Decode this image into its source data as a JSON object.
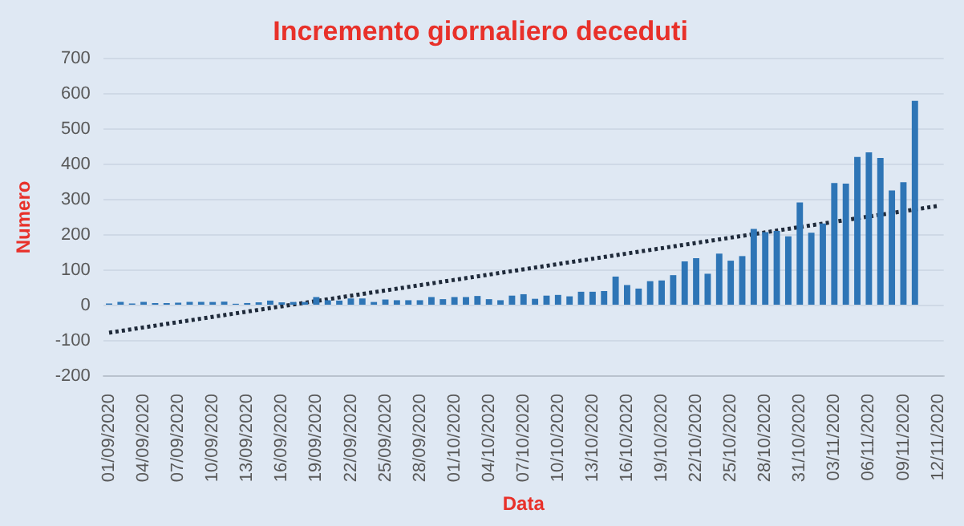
{
  "chart_data": {
    "type": "bar",
    "title": "Incremento giornaliero deceduti",
    "xlabel": "Data",
    "ylabel": "Numero",
    "categories": [
      "01/09/2020",
      null,
      null,
      "04/09/2020",
      null,
      null,
      "07/09/2020",
      null,
      null,
      "10/09/2020",
      null,
      null,
      "13/09/2020",
      null,
      null,
      "16/09/2020",
      null,
      null,
      "19/09/2020",
      null,
      null,
      "22/09/2020",
      null,
      null,
      "25/09/2020",
      null,
      null,
      "28/09/2020",
      null,
      null,
      "01/10/2020",
      null,
      null,
      "04/10/2020",
      null,
      null,
      "07/10/2020",
      null,
      null,
      "10/10/2020",
      null,
      null,
      "13/10/2020",
      null,
      null,
      "16/10/2020",
      null,
      null,
      "19/10/2020",
      null,
      null,
      "22/10/2020",
      null,
      null,
      "25/10/2020",
      null,
      null,
      "28/10/2020",
      null,
      null,
      "31/10/2020",
      null,
      null,
      "03/11/2020",
      null,
      null,
      "06/11/2020",
      null,
      null,
      "09/11/2020",
      null,
      null,
      "12/11/2020"
    ],
    "series": [
      {
        "color": "#2e75b6",
        "values": [
          6,
          10,
          6,
          10,
          7,
          7,
          8,
          10,
          10,
          10,
          11,
          5,
          7,
          9,
          14,
          9,
          10,
          10,
          24,
          15,
          14,
          20,
          20,
          10,
          17,
          15,
          15,
          15,
          24,
          18,
          24,
          24,
          27,
          18,
          15,
          28,
          32,
          19,
          28,
          30,
          26,
          39,
          39,
          41,
          82,
          58,
          48,
          69,
          71,
          86,
          125,
          134,
          90,
          147,
          127,
          140,
          217,
          208,
          211,
          196,
          292,
          206,
          232,
          347,
          345,
          421,
          434,
          418,
          326,
          349,
          580,
          null,
          null
        ]
      },
      {
        "type": "line",
        "color": "#1f2a3a",
        "line_style": "dotted",
        "marker": "none",
        "values": [
          -77,
          null,
          null,
          null,
          null,
          null,
          null,
          null,
          null,
          null,
          null,
          null,
          null,
          null,
          null,
          null,
          null,
          null,
          null,
          null,
          null,
          null,
          null,
          null,
          null,
          null,
          null,
          null,
          null,
          null,
          null,
          null,
          null,
          null,
          null,
          null,
          null,
          null,
          null,
          null,
          null,
          null,
          null,
          null,
          null,
          null,
          null,
          null,
          null,
          null,
          null,
          null,
          null,
          null,
          null,
          null,
          null,
          null,
          null,
          null,
          null,
          null,
          null,
          null,
          null,
          null,
          null,
          null,
          null,
          null,
          null,
          null,
          282
        ]
      }
    ],
    "ylim": [
      -200,
      700
    ],
    "yticks": [
      -200,
      -100,
      0,
      100,
      200,
      300,
      400,
      500,
      600,
      700
    ],
    "grid": "y",
    "legend": false
  }
}
